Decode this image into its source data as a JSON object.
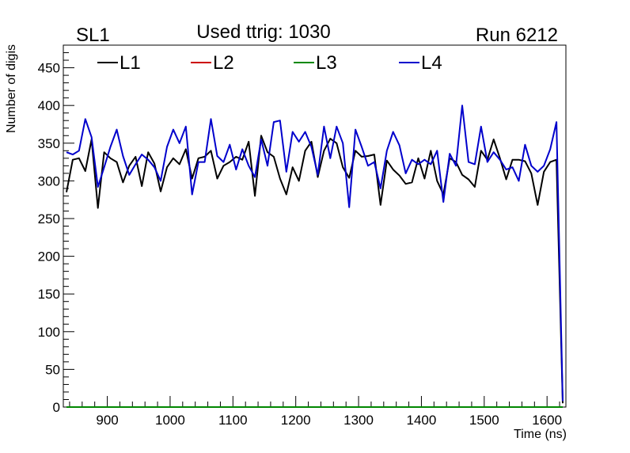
{
  "chart_data": {
    "type": "line",
    "title": "Used ttrig: 1030",
    "title_left": "SL1",
    "title_right": "Run 6212",
    "xlabel": "Time (ns)",
    "ylabel": "Number of digis",
    "xlim": [
      830,
      1630
    ],
    "ylim": [
      0,
      480
    ],
    "x_ticks": [
      900,
      1000,
      1100,
      1200,
      1300,
      1400,
      1500,
      1600
    ],
    "y_ticks": [
      0,
      50,
      100,
      150,
      200,
      250,
      300,
      350,
      400,
      450
    ],
    "x": [
      835,
      845,
      855,
      865,
      875,
      885,
      895,
      905,
      915,
      925,
      935,
      945,
      955,
      965,
      975,
      985,
      995,
      1005,
      1015,
      1025,
      1035,
      1045,
      1055,
      1065,
      1075,
      1085,
      1095,
      1105,
      1115,
      1125,
      1135,
      1145,
      1155,
      1165,
      1175,
      1185,
      1195,
      1205,
      1215,
      1225,
      1235,
      1245,
      1255,
      1265,
      1275,
      1285,
      1295,
      1305,
      1315,
      1325,
      1335,
      1345,
      1355,
      1365,
      1375,
      1385,
      1395,
      1405,
      1415,
      1425,
      1435,
      1445,
      1455,
      1465,
      1475,
      1485,
      1495,
      1505,
      1515,
      1525,
      1535,
      1545,
      1555,
      1565,
      1575,
      1585,
      1595,
      1605,
      1615,
      1625
    ],
    "series": [
      {
        "name": "L1",
        "color": "#000000",
        "values": [
          285,
          328,
          330,
          313,
          355,
          264,
          338,
          330,
          325,
          298,
          320,
          332,
          293,
          338,
          323,
          286,
          318,
          330,
          322,
          342,
          303,
          330,
          332,
          340,
          303,
          320,
          325,
          332,
          328,
          352,
          280,
          360,
          338,
          332,
          303,
          282,
          318,
          300,
          340,
          352,
          305,
          340,
          356,
          350,
          318,
          304,
          340,
          332,
          333,
          335,
          268,
          327,
          315,
          307,
          296,
          298,
          330,
          303,
          340,
          300,
          282,
          330,
          325,
          308,
          302,
          292,
          340,
          328,
          355,
          330,
          302,
          328,
          328,
          326,
          310,
          268,
          312,
          325,
          328,
          5
        ]
      },
      {
        "name": "L2",
        "color": "#cc0000",
        "values": [
          0,
          0,
          0,
          0,
          0,
          0,
          0,
          0,
          0,
          0,
          0,
          0,
          0,
          0,
          0,
          0,
          0,
          0,
          0,
          0,
          0,
          0,
          0,
          0,
          0,
          0,
          0,
          0,
          0,
          0,
          0,
          0,
          0,
          0,
          0,
          0,
          0,
          0,
          0,
          0,
          0,
          0,
          0,
          0,
          0,
          0,
          0,
          0,
          0,
          0,
          0,
          0,
          0,
          0,
          0,
          0,
          0,
          0,
          0,
          0,
          0,
          0,
          0,
          0,
          0,
          0,
          0,
          0,
          0,
          0,
          0,
          0,
          0,
          0,
          0,
          0,
          0,
          0,
          0,
          0
        ]
      },
      {
        "name": "L3",
        "color": "#008800",
        "values": [
          0,
          0,
          0,
          0,
          0,
          0,
          0,
          0,
          0,
          0,
          0,
          0,
          0,
          0,
          0,
          0,
          0,
          0,
          0,
          0,
          0,
          0,
          0,
          0,
          0,
          0,
          0,
          0,
          0,
          0,
          0,
          0,
          0,
          0,
          0,
          0,
          0,
          0,
          0,
          0,
          0,
          0,
          0,
          0,
          0,
          0,
          0,
          0,
          0,
          0,
          0,
          0,
          0,
          0,
          0,
          0,
          0,
          0,
          0,
          0,
          0,
          0,
          0,
          0,
          0,
          0,
          0,
          0,
          0,
          0,
          0,
          0,
          0,
          0,
          0,
          0,
          0,
          0,
          0,
          0
        ]
      },
      {
        "name": "L4",
        "color": "#0000cc",
        "values": [
          338,
          335,
          340,
          382,
          358,
          292,
          318,
          345,
          368,
          333,
          308,
          322,
          335,
          328,
          318,
          300,
          345,
          368,
          350,
          372,
          282,
          325,
          325,
          382,
          333,
          325,
          348,
          315,
          342,
          320,
          305,
          355,
          320,
          378,
          380,
          312,
          365,
          352,
          365,
          345,
          308,
          372,
          330,
          372,
          350,
          265,
          368,
          345,
          320,
          325,
          290,
          340,
          365,
          347,
          310,
          328,
          322,
          328,
          322,
          340,
          272,
          336,
          320,
          400,
          325,
          322,
          372,
          325,
          338,
          328,
          315,
          318,
          300,
          348,
          320,
          312,
          320,
          342,
          378,
          8
        ]
      }
    ],
    "legend": [
      "L1",
      "L2",
      "L3",
      "L4"
    ],
    "legend_position": "top",
    "grid": false
  }
}
